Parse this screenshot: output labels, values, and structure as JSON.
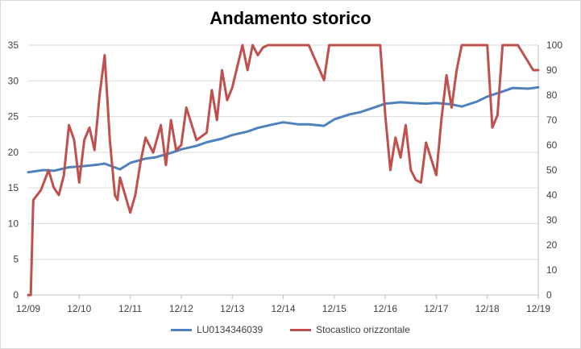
{
  "chart_data": {
    "type": "line",
    "title": "Andamento storico",
    "x_labels": [
      "12/09",
      "12/10",
      "12/11",
      "12/12",
      "12/13",
      "12/14",
      "12/15",
      "12/16",
      "12/17",
      "12/18",
      "12/19"
    ],
    "y_left": {
      "min": 0,
      "max": 35,
      "ticks": [
        0,
        5,
        10,
        15,
        20,
        25,
        30,
        35
      ]
    },
    "y_right": {
      "min": 0,
      "max": 100,
      "ticks": [
        0,
        10,
        20,
        30,
        40,
        50,
        60,
        70,
        80,
        90,
        100
      ]
    },
    "legend_position": "bottom",
    "series": [
      {
        "name": "LU0134346039",
        "axis": "left",
        "color": "#4f81bd",
        "x": [
          0,
          0.3,
          0.5,
          0.8,
          1.0,
          1.3,
          1.5,
          1.8,
          2.0,
          2.3,
          2.5,
          2.8,
          3.0,
          3.3,
          3.5,
          3.8,
          4.0,
          4.3,
          4.5,
          4.8,
          5.0,
          5.3,
          5.5,
          5.8,
          6.0,
          6.3,
          6.5,
          6.8,
          7.0,
          7.3,
          7.5,
          7.8,
          8.0,
          8.3,
          8.5,
          8.8,
          9.0,
          9.3,
          9.5,
          9.8,
          10.0
        ],
        "values": [
          17.2,
          17.5,
          17.4,
          17.9,
          18.0,
          18.2,
          18.4,
          17.6,
          18.5,
          19.1,
          19.3,
          19.9,
          20.4,
          20.9,
          21.4,
          21.9,
          22.4,
          22.9,
          23.4,
          23.9,
          24.2,
          23.9,
          23.9,
          23.7,
          24.6,
          25.3,
          25.6,
          26.3,
          26.8,
          27.0,
          26.9,
          26.8,
          26.9,
          26.7,
          26.4,
          27.1,
          27.8,
          28.5,
          29.0,
          28.9,
          29.1
        ]
      },
      {
        "name": "Stocastico orizzontale",
        "axis": "right",
        "color": "#c0504d",
        "x": [
          0,
          0.05,
          0.1,
          0.25,
          0.4,
          0.5,
          0.6,
          0.7,
          0.8,
          0.9,
          1.0,
          1.1,
          1.2,
          1.3,
          1.4,
          1.5,
          1.6,
          1.7,
          1.75,
          1.8,
          1.9,
          2.0,
          2.1,
          2.2,
          2.3,
          2.45,
          2.6,
          2.7,
          2.8,
          2.9,
          3.0,
          3.1,
          3.3,
          3.5,
          3.6,
          3.7,
          3.8,
          3.9,
          4.0,
          4.2,
          4.3,
          4.4,
          4.5,
          4.6,
          4.7,
          4.8,
          5.0,
          5.5,
          5.8,
          5.9,
          6.0,
          6.2,
          6.5,
          6.9,
          7.0,
          7.1,
          7.2,
          7.3,
          7.4,
          7.5,
          7.6,
          7.7,
          7.8,
          8.0,
          8.1,
          8.2,
          8.3,
          8.4,
          8.5,
          8.6,
          9.0,
          9.1,
          9.2,
          9.3,
          9.4,
          9.6,
          9.9,
          10.0
        ],
        "values": [
          0,
          0,
          38,
          42,
          50,
          43,
          40,
          48,
          68,
          62,
          45,
          62,
          67,
          58,
          80,
          96,
          62,
          40,
          38,
          47,
          40,
          33,
          40,
          53,
          63,
          57,
          68,
          52,
          70,
          58,
          60,
          75,
          62,
          65,
          82,
          70,
          90,
          78,
          83,
          100,
          90,
          100,
          96,
          99,
          100,
          100,
          100,
          100,
          86,
          100,
          100,
          100,
          100,
          100,
          72,
          50,
          63,
          55,
          68,
          50,
          46,
          45,
          61,
          48,
          70,
          88,
          75,
          90,
          100,
          100,
          100,
          67,
          72,
          100,
          100,
          100,
          90,
          90
        ]
      }
    ]
  }
}
